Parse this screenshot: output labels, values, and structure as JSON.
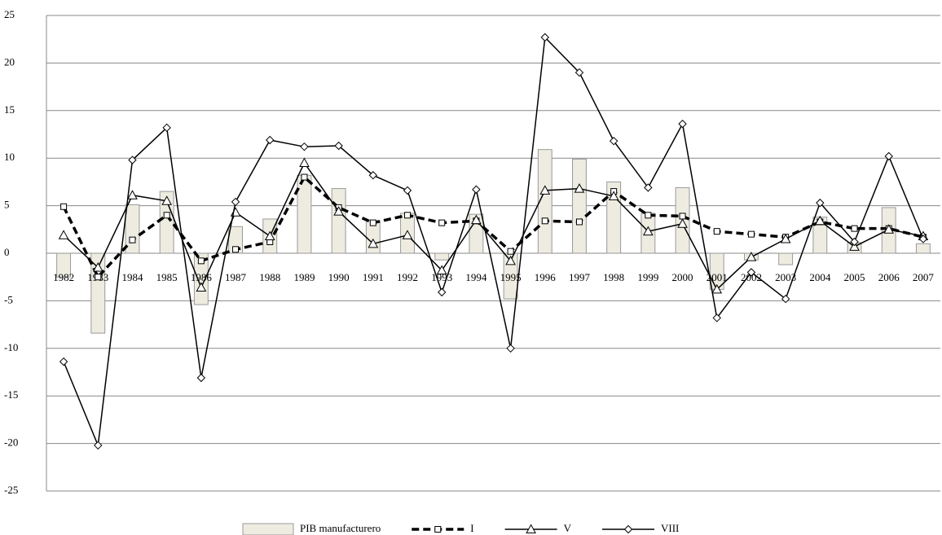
{
  "chart_data": {
    "type": "bar-line",
    "categories": [
      "1982",
      "1983",
      "1984",
      "1985",
      "1986",
      "1987",
      "1988",
      "1989",
      "1990",
      "1991",
      "1992",
      "1993",
      "1994",
      "1995",
      "1996",
      "1997",
      "1998",
      "1999",
      "2000",
      "2001",
      "2002",
      "2003",
      "2004",
      "2005",
      "2006",
      "2007"
    ],
    "series": [
      {
        "name": "PIB manufacturero",
        "kind": "bar",
        "color": "#eeece1",
        "values": [
          -2.5,
          -8.4,
          5.1,
          6.5,
          -5.4,
          2.8,
          3.6,
          8.2,
          6.8,
          3.4,
          4.2,
          -0.7,
          4.1,
          -4.8,
          10.9,
          9.9,
          7.5,
          4.2,
          6.9,
          -3.8,
          -0.7,
          -1.2,
          3.8,
          1.1,
          4.8,
          1.0
        ]
      },
      {
        "name": "I",
        "kind": "line",
        "color": "#000000",
        "marker": "square",
        "dashed": true,
        "values": [
          4.9,
          -2.5,
          1.4,
          4.0,
          -0.8,
          0.4,
          1.2,
          8.0,
          4.8,
          3.2,
          4.0,
          3.2,
          3.4,
          0.2,
          3.4,
          3.3,
          6.5,
          4.0,
          3.9,
          2.3,
          2.0,
          1.7,
          3.3,
          2.6,
          2.6,
          1.7
        ]
      },
      {
        "name": "V",
        "kind": "line",
        "color": "#000000",
        "marker": "triangle",
        "dashed": false,
        "values": [
          1.9,
          -1.5,
          6.1,
          5.5,
          -3.6,
          4.3,
          1.8,
          9.5,
          4.4,
          1.0,
          1.9,
          -1.8,
          3.5,
          -0.8,
          6.6,
          6.8,
          6.0,
          2.3,
          3.1,
          -3.8,
          -0.4,
          1.5,
          3.4,
          0.7,
          2.5,
          1.8
        ]
      },
      {
        "name": "VIII",
        "kind": "line",
        "color": "#000000",
        "marker": "diamond",
        "dashed": false,
        "values": [
          -11.4,
          -20.2,
          9.8,
          13.2,
          -13.1,
          5.4,
          11.9,
          11.2,
          11.3,
          8.2,
          6.6,
          -4.1,
          6.7,
          -10.0,
          22.7,
          19.0,
          11.8,
          6.9,
          13.6,
          -6.8,
          -2.0,
          -4.8,
          5.3,
          1.2,
          10.2,
          1.5
        ]
      }
    ],
    "ylim": [
      -25,
      25
    ],
    "yticks": [
      25,
      20,
      15,
      10,
      5,
      0,
      -5,
      -10,
      -15,
      -20,
      -25
    ],
    "grid": true
  }
}
